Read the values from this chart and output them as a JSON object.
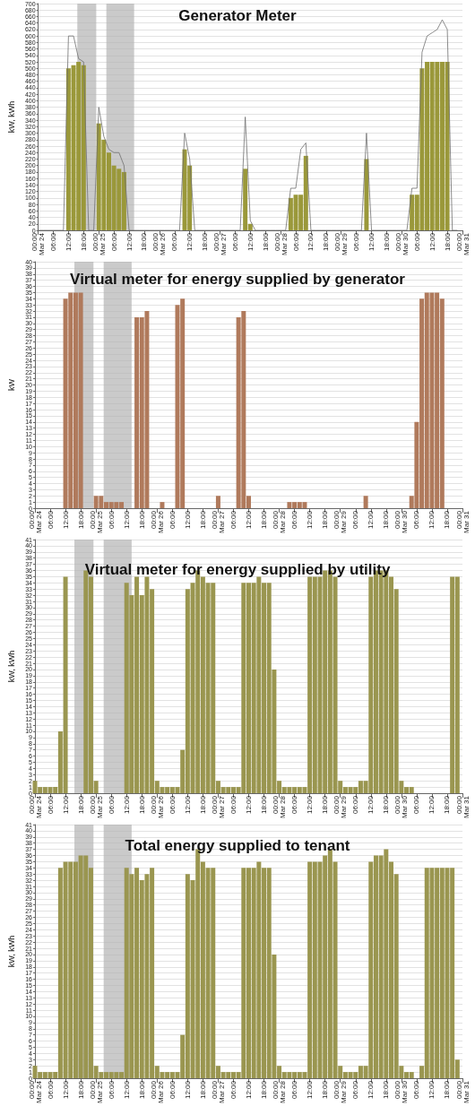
{
  "chart_data": [
    {
      "type": "bar",
      "title": "Generator Meter",
      "ylabel": "kW, kWh",
      "grid": "y",
      "marker": "none",
      "x": [
        "--03-24T00:00",
        "--03-24T02:00",
        "--03-24T04:00",
        "--03-24T06:00",
        "--03-24T08:00",
        "--03-24T10:00",
        "--03-24T12:00",
        "--03-24T14:00",
        "--03-24T16:00",
        "--03-24T18:00",
        "--03-24T20:00",
        "--03-24T22:00",
        "--03-25T00:00",
        "--03-25T02:00",
        "--03-25T04:00",
        "--03-25T06:00",
        "--03-25T08:00",
        "--03-25T10:00",
        "--03-25T12:00",
        "--03-25T14:00",
        "--03-25T16:00",
        "--03-25T18:00",
        "--03-25T20:00",
        "--03-25T22:00",
        "--03-26T00:00",
        "--03-26T02:00",
        "--03-26T04:00",
        "--03-26T06:00",
        "--03-26T08:00",
        "--03-26T10:00",
        "--03-26T12:00",
        "--03-26T14:00",
        "--03-26T16:00",
        "--03-26T18:00",
        "--03-26T20:00",
        "--03-26T22:00",
        "--03-27T00:00",
        "--03-27T02:00",
        "--03-27T04:00",
        "--03-27T06:00",
        "--03-27T08:00",
        "--03-27T10:00",
        "--03-27T12:00",
        "--03-27T14:00",
        "--03-27T16:00",
        "--03-27T18:00",
        "--03-27T20:00",
        "--03-27T22:00",
        "--03-28T00:00",
        "--03-28T02:00",
        "--03-28T04:00",
        "--03-28T06:00",
        "--03-28T08:00",
        "--03-28T10:00",
        "--03-28T12:00",
        "--03-28T14:00",
        "--03-28T16:00",
        "--03-28T18:00",
        "--03-28T20:00",
        "--03-28T22:00",
        "--03-29T00:00",
        "--03-29T02:00",
        "--03-29T04:00",
        "--03-29T06:00",
        "--03-29T08:00",
        "--03-29T10:00",
        "--03-29T12:00",
        "--03-29T14:00",
        "--03-29T16:00",
        "--03-29T18:00",
        "--03-29T20:00",
        "--03-29T22:00",
        "--03-30T00:00",
        "--03-30T02:00",
        "--03-30T04:00",
        "--03-30T06:00",
        "--03-30T08:00",
        "--03-30T10:00",
        "--03-30T12:00",
        "--03-30T14:00",
        "--03-30T16:00",
        "--03-30T18:00",
        "--03-30T20:00",
        "--03-30T22:00"
      ],
      "series": [
        {
          "color": "#9a983a",
          "values": [
            0,
            0,
            0,
            0,
            0,
            0,
            500,
            510,
            520,
            510,
            0,
            0,
            330,
            280,
            240,
            200,
            190,
            180,
            0,
            0,
            0,
            0,
            0,
            0,
            0,
            0,
            0,
            0,
            0,
            250,
            200,
            0,
            0,
            0,
            0,
            0,
            0,
            0,
            0,
            0,
            0,
            190,
            20,
            0,
            0,
            0,
            0,
            0,
            0,
            0,
            100,
            110,
            110,
            230,
            0,
            0,
            0,
            0,
            0,
            0,
            0,
            0,
            0,
            0,
            0,
            220,
            0,
            0,
            0,
            0,
            0,
            0,
            0,
            0,
            110,
            110,
            500,
            520,
            520,
            520,
            520,
            520,
            0,
            0
          ]
        },
        {
          "type": "line",
          "color": "#707070",
          "values": [
            0,
            0,
            0,
            0,
            0,
            0,
            600,
            600,
            530,
            520,
            0,
            0,
            380,
            290,
            250,
            240,
            240,
            200,
            0,
            0,
            0,
            0,
            0,
            0,
            0,
            0,
            0,
            0,
            0,
            300,
            220,
            0,
            0,
            0,
            0,
            0,
            0,
            0,
            0,
            0,
            0,
            350,
            30,
            0,
            0,
            0,
            0,
            0,
            0,
            0,
            130,
            130,
            250,
            270,
            0,
            0,
            0,
            0,
            0,
            0,
            0,
            0,
            0,
            0,
            0,
            300,
            0,
            0,
            0,
            0,
            0,
            0,
            0,
            0,
            130,
            130,
            550,
            600,
            610,
            620,
            650,
            620,
            0,
            0
          ]
        }
      ],
      "xlim": [
        "--03-24T00:00",
        "--03-31T00:00"
      ],
      "xticks": [
        {
          "value": "--03-24T00:00",
          "label": "00:00\nMar 24"
        },
        {
          "value": "--03-24T06:00",
          "label": "06:00"
        },
        {
          "value": "--03-24T12:00",
          "label": "12:00"
        },
        {
          "value": "--03-24T18:00",
          "label": "18:00"
        },
        {
          "value": "--03-25T00:00",
          "label": "00:00\nMar 25"
        },
        {
          "value": "--03-25T06:00",
          "label": "06:00"
        },
        {
          "value": "--03-25T12:00",
          "label": "12:00"
        },
        {
          "value": "--03-25T18:00",
          "label": "18:00"
        },
        {
          "value": "--03-26T00:00",
          "label": "00:00\nMar 26"
        },
        {
          "value": "--03-26T06:00",
          "label": "06:00"
        },
        {
          "value": "--03-26T12:00",
          "label": "12:00"
        },
        {
          "value": "--03-26T18:00",
          "label": "18:00"
        },
        {
          "value": "--03-27T00:00",
          "label": "00:00\nMar 27"
        },
        {
          "value": "--03-27T06:00",
          "label": "06:00"
        },
        {
          "value": "--03-27T12:00",
          "label": "12:00"
        },
        {
          "value": "--03-27T18:00",
          "label": "18:00"
        },
        {
          "value": "--03-28T00:00",
          "label": "00:00\nMar 28"
        },
        {
          "value": "--03-28T06:00",
          "label": "06:00"
        },
        {
          "value": "--03-28T12:00",
          "label": "12:00"
        },
        {
          "value": "--03-28T18:00",
          "label": "18:00"
        },
        {
          "value": "--03-29T00:00",
          "label": "00:00\nMar 29"
        },
        {
          "value": "--03-29T06:00",
          "label": "06:00"
        },
        {
          "value": "--03-29T12:00",
          "label": "12:00"
        },
        {
          "value": "--03-29T18:00",
          "label": "18:00"
        },
        {
          "value": "--03-30T00:00",
          "label": "00:00\nMar 30"
        },
        {
          "value": "--03-30T06:00",
          "label": "06:00"
        },
        {
          "value": "--03-30T12:00",
          "label": "12:00"
        },
        {
          "value": "--03-30T18:00",
          "label": "18:00"
        },
        {
          "value": "--03-31T00:00",
          "label": "00:00\nMar 31"
        }
      ],
      "ylim": [
        0,
        700
      ],
      "yticks": [
        0,
        20,
        40,
        60,
        80,
        100,
        120,
        140,
        160,
        180,
        200,
        220,
        240,
        260,
        280,
        300,
        320,
        340,
        360,
        380,
        400,
        420,
        440,
        460,
        480,
        500,
        520,
        540,
        560,
        580,
        600,
        620,
        640,
        660,
        680,
        700
      ],
      "bands": [
        {
          "axis": "x",
          "from": "--03-24T15:30",
          "to": "--03-24T23:00",
          "color": "#b4b4b4"
        },
        {
          "axis": "x",
          "from": "--03-25T03:00",
          "to": "--03-25T14:00",
          "color": "#b4b4b4"
        }
      ]
    },
    {
      "type": "bar",
      "title": "Virtual meter for energy supplied by generator",
      "ylabel": "kW",
      "grid": "y",
      "x": [
        "--03-24T00:00",
        "--03-24T02:00",
        "--03-24T04:00",
        "--03-24T06:00",
        "--03-24T08:00",
        "--03-24T10:00",
        "--03-24T12:00",
        "--03-24T14:00",
        "--03-24T16:00",
        "--03-24T18:00",
        "--03-24T20:00",
        "--03-24T22:00",
        "--03-25T00:00",
        "--03-25T02:00",
        "--03-25T04:00",
        "--03-25T06:00",
        "--03-25T08:00",
        "--03-25T10:00",
        "--03-25T12:00",
        "--03-25T14:00",
        "--03-25T16:00",
        "--03-25T18:00",
        "--03-25T20:00",
        "--03-25T22:00",
        "--03-26T00:00",
        "--03-26T02:00",
        "--03-26T04:00",
        "--03-26T06:00",
        "--03-26T08:00",
        "--03-26T10:00",
        "--03-26T12:00",
        "--03-26T14:00",
        "--03-26T16:00",
        "--03-26T18:00",
        "--03-26T20:00",
        "--03-26T22:00",
        "--03-27T00:00",
        "--03-27T02:00",
        "--03-27T04:00",
        "--03-27T06:00",
        "--03-27T08:00",
        "--03-27T10:00",
        "--03-27T12:00",
        "--03-27T14:00",
        "--03-27T16:00",
        "--03-27T18:00",
        "--03-27T20:00",
        "--03-27T22:00",
        "--03-28T00:00",
        "--03-28T02:00",
        "--03-28T04:00",
        "--03-28T06:00",
        "--03-28T08:00",
        "--03-28T10:00",
        "--03-28T12:00",
        "--03-28T14:00",
        "--03-28T16:00",
        "--03-28T18:00",
        "--03-28T20:00",
        "--03-28T22:00",
        "--03-29T00:00",
        "--03-29T02:00",
        "--03-29T04:00",
        "--03-29T06:00",
        "--03-29T08:00",
        "--03-29T10:00",
        "--03-29T12:00",
        "--03-29T14:00",
        "--03-29T16:00",
        "--03-29T18:00",
        "--03-29T20:00",
        "--03-29T22:00",
        "--03-30T00:00",
        "--03-30T02:00",
        "--03-30T04:00",
        "--03-30T06:00",
        "--03-30T08:00",
        "--03-30T10:00",
        "--03-30T12:00",
        "--03-30T14:00",
        "--03-30T16:00",
        "--03-30T18:00",
        "--03-30T20:00",
        "--03-30T22:00"
      ],
      "series": [
        {
          "color": "#b07a5c",
          "values": [
            0,
            0,
            0,
            0,
            0,
            0,
            34,
            35,
            35,
            35,
            0,
            0,
            2,
            2,
            1,
            1,
            1,
            1,
            0,
            0,
            31,
            31,
            32,
            0,
            0,
            1,
            0,
            0,
            33,
            34,
            0,
            0,
            0,
            0,
            0,
            0,
            2,
            0,
            0,
            0,
            31,
            32,
            2,
            0,
            0,
            0,
            0,
            0,
            0,
            0,
            1,
            1,
            1,
            1,
            0,
            0,
            0,
            0,
            0,
            0,
            0,
            0,
            0,
            0,
            0,
            2,
            0,
            0,
            0,
            0,
            0,
            0,
            0,
            0,
            2,
            14,
            34,
            35,
            35,
            35,
            34,
            0,
            0,
            0
          ]
        }
      ],
      "xlim": [
        "--03-24T00:00",
        "--03-31T00:00"
      ],
      "xticks": [
        {
          "value": "--03-24T00:00",
          "label": "00:00\nMar 24"
        },
        {
          "value": "--03-24T06:00",
          "label": "06:00"
        },
        {
          "value": "--03-24T12:00",
          "label": "12:00"
        },
        {
          "value": "--03-24T18:00",
          "label": "18:00"
        },
        {
          "value": "--03-25T00:00",
          "label": "00:00\nMar 25"
        },
        {
          "value": "--03-25T06:00",
          "label": "06:00"
        },
        {
          "value": "--03-25T12:00",
          "label": "12:00"
        },
        {
          "value": "--03-25T18:00",
          "label": "18:00"
        },
        {
          "value": "--03-26T00:00",
          "label": "00:00\nMar 26"
        },
        {
          "value": "--03-26T06:00",
          "label": "06:00"
        },
        {
          "value": "--03-26T12:00",
          "label": "12:00"
        },
        {
          "value": "--03-26T18:00",
          "label": "18:00"
        },
        {
          "value": "--03-27T00:00",
          "label": "00:00\nMar 27"
        },
        {
          "value": "--03-27T06:00",
          "label": "06:00"
        },
        {
          "value": "--03-27T12:00",
          "label": "12:00"
        },
        {
          "value": "--03-27T18:00",
          "label": "18:00"
        },
        {
          "value": "--03-28T00:00",
          "label": "00:00\nMar 28"
        },
        {
          "value": "--03-28T06:00",
          "label": "06:00"
        },
        {
          "value": "--03-28T12:00",
          "label": "12:00"
        },
        {
          "value": "--03-28T18:00",
          "label": "18:00"
        },
        {
          "value": "--03-29T00:00",
          "label": "00:00\nMar 29"
        },
        {
          "value": "--03-29T06:00",
          "label": "06:00"
        },
        {
          "value": "--03-29T12:00",
          "label": "12:00"
        },
        {
          "value": "--03-29T18:00",
          "label": "18:00"
        },
        {
          "value": "--03-30T00:00",
          "label": "00:00\nMar 30"
        },
        {
          "value": "--03-30T06:00",
          "label": "06:00"
        },
        {
          "value": "--03-30T12:00",
          "label": "12:00"
        },
        {
          "value": "--03-30T18:00",
          "label": "18:00"
        },
        {
          "value": "--03-31T00:00",
          "label": "00:00\nMar 31"
        }
      ],
      "ylim": [
        0,
        40
      ],
      "yticks": [
        0,
        1,
        2,
        3,
        4,
        5,
        6,
        7,
        8,
        9,
        10,
        11,
        12,
        13,
        14,
        15,
        16,
        17,
        18,
        19,
        20,
        21,
        22,
        23,
        24,
        25,
        26,
        27,
        28,
        29,
        30,
        31,
        32,
        33,
        34,
        35,
        36,
        37,
        38,
        39,
        40
      ],
      "bands": [
        {
          "axis": "x",
          "from": "--03-24T15:30",
          "to": "--03-24T23:00",
          "color": "#b4b4b4"
        },
        {
          "axis": "x",
          "from": "--03-25T03:00",
          "to": "--03-25T14:00",
          "color": "#b4b4b4"
        }
      ]
    },
    {
      "type": "bar",
      "title": "Virtual meter for energy supplied by utility",
      "ylabel": "kW, kWh",
      "grid": "y",
      "x": [
        "--03-24T00:00",
        "--03-24T02:00",
        "--03-24T04:00",
        "--03-24T06:00",
        "--03-24T08:00",
        "--03-24T10:00",
        "--03-24T12:00",
        "--03-24T14:00",
        "--03-24T16:00",
        "--03-24T18:00",
        "--03-24T20:00",
        "--03-24T22:00",
        "--03-25T00:00",
        "--03-25T02:00",
        "--03-25T04:00",
        "--03-25T06:00",
        "--03-25T08:00",
        "--03-25T10:00",
        "--03-25T12:00",
        "--03-25T14:00",
        "--03-25T16:00",
        "--03-25T18:00",
        "--03-25T20:00",
        "--03-25T22:00",
        "--03-26T00:00",
        "--03-26T02:00",
        "--03-26T04:00",
        "--03-26T06:00",
        "--03-26T08:00",
        "--03-26T10:00",
        "--03-26T12:00",
        "--03-26T14:00",
        "--03-26T16:00",
        "--03-26T18:00",
        "--03-26T20:00",
        "--03-26T22:00",
        "--03-27T00:00",
        "--03-27T02:00",
        "--03-27T04:00",
        "--03-27T06:00",
        "--03-27T08:00",
        "--03-27T10:00",
        "--03-27T12:00",
        "--03-27T14:00",
        "--03-27T16:00",
        "--03-27T18:00",
        "--03-27T20:00",
        "--03-27T22:00",
        "--03-28T00:00",
        "--03-28T02:00",
        "--03-28T04:00",
        "--03-28T06:00",
        "--03-28T08:00",
        "--03-28T10:00",
        "--03-28T12:00",
        "--03-28T14:00",
        "--03-28T16:00",
        "--03-28T18:00",
        "--03-28T20:00",
        "--03-28T22:00",
        "--03-29T00:00",
        "--03-29T02:00",
        "--03-29T04:00",
        "--03-29T06:00",
        "--03-29T08:00",
        "--03-29T10:00",
        "--03-29T12:00",
        "--03-29T14:00",
        "--03-29T16:00",
        "--03-29T18:00",
        "--03-29T20:00",
        "--03-29T22:00",
        "--03-30T00:00",
        "--03-30T02:00",
        "--03-30T04:00",
        "--03-30T06:00",
        "--03-30T08:00",
        "--03-30T10:00",
        "--03-30T12:00",
        "--03-30T14:00",
        "--03-30T16:00",
        "--03-30T18:00",
        "--03-30T20:00",
        "--03-30T22:00"
      ],
      "series": [
        {
          "color": "#9a9650",
          "values": [
            2,
            1,
            1,
            1,
            1,
            10,
            35,
            0,
            0,
            0,
            36,
            35,
            2,
            0,
            0,
            0,
            0,
            0,
            34,
            32,
            35,
            32,
            35,
            33,
            2,
            1,
            1,
            1,
            1,
            7,
            33,
            34,
            36,
            35,
            34,
            34,
            2,
            1,
            1,
            1,
            1,
            34,
            34,
            34,
            35,
            34,
            34,
            20,
            2,
            1,
            1,
            1,
            1,
            1,
            35,
            35,
            35,
            36,
            36,
            35,
            2,
            1,
            1,
            1,
            2,
            2,
            35,
            36,
            36,
            36,
            35,
            33,
            2,
            1,
            1,
            0,
            0,
            0,
            0,
            0,
            0,
            0,
            35,
            35
          ]
        }
      ],
      "xlim": [
        "--03-24T00:00",
        "--03-31T00:00"
      ],
      "xticks": [
        {
          "value": "--03-24T00:00",
          "label": "00:00\nMar 24"
        },
        {
          "value": "--03-24T06:00",
          "label": "06:00"
        },
        {
          "value": "--03-24T12:00",
          "label": "12:00"
        },
        {
          "value": "--03-24T18:00",
          "label": "18:00"
        },
        {
          "value": "--03-25T00:00",
          "label": "00:00\nMar 25"
        },
        {
          "value": "--03-25T06:00",
          "label": "06:00"
        },
        {
          "value": "--03-25T12:00",
          "label": "12:00"
        },
        {
          "value": "--03-25T18:00",
          "label": "18:00"
        },
        {
          "value": "--03-26T00:00",
          "label": "00:00\nMar 26"
        },
        {
          "value": "--03-26T06:00",
          "label": "06:00"
        },
        {
          "value": "--03-26T12:00",
          "label": "12:00"
        },
        {
          "value": "--03-26T18:00",
          "label": "18:00"
        },
        {
          "value": "--03-27T00:00",
          "label": "00:00\nMar 27"
        },
        {
          "value": "--03-27T06:00",
          "label": "06:00"
        },
        {
          "value": "--03-27T12:00",
          "label": "12:00"
        },
        {
          "value": "--03-27T18:00",
          "label": "18:00"
        },
        {
          "value": "--03-28T00:00",
          "label": "00:00\nMar 28"
        },
        {
          "value": "--03-28T06:00",
          "label": "06:00"
        },
        {
          "value": "--03-28T12:00",
          "label": "12:00"
        },
        {
          "value": "--03-28T18:00",
          "label": "18:00"
        },
        {
          "value": "--03-29T00:00",
          "label": "00:00\nMar 29"
        },
        {
          "value": "--03-29T06:00",
          "label": "06:00"
        },
        {
          "value": "--03-29T12:00",
          "label": "12:00"
        },
        {
          "value": "--03-29T18:00",
          "label": "18:00"
        },
        {
          "value": "--03-30T00:00",
          "label": "00:00\nMar 30"
        },
        {
          "value": "--03-30T06:00",
          "label": "06:00"
        },
        {
          "value": "--03-30T12:00",
          "label": "12:00"
        },
        {
          "value": "--03-30T18:00",
          "label": "18:00"
        },
        {
          "value": "--03-31T00:00",
          "label": "00:00\nMar 31"
        }
      ],
      "ylim": [
        0,
        41
      ],
      "yticks": [
        0,
        1,
        2,
        3,
        4,
        5,
        6,
        7,
        8,
        9,
        10,
        11,
        12,
        13,
        14,
        15,
        16,
        17,
        18,
        19,
        20,
        21,
        22,
        23,
        24,
        25,
        26,
        27,
        28,
        29,
        30,
        31,
        32,
        33,
        34,
        35,
        36,
        37,
        38,
        39,
        40,
        41
      ],
      "bands": [
        {
          "axis": "x",
          "from": "--03-24T15:30",
          "to": "--03-24T23:00",
          "color": "#b4b4b4"
        },
        {
          "axis": "x",
          "from": "--03-25T03:00",
          "to": "--03-25T14:00",
          "color": "#b4b4b4"
        }
      ]
    },
    {
      "type": "bar",
      "title": "Total energy supplied to tenant",
      "ylabel": "kW, kWh",
      "grid": "y",
      "x": [
        "--03-24T00:00",
        "--03-24T02:00",
        "--03-24T04:00",
        "--03-24T06:00",
        "--03-24T08:00",
        "--03-24T10:00",
        "--03-24T12:00",
        "--03-24T14:00",
        "--03-24T16:00",
        "--03-24T18:00",
        "--03-24T20:00",
        "--03-24T22:00",
        "--03-25T00:00",
        "--03-25T02:00",
        "--03-25T04:00",
        "--03-25T06:00",
        "--03-25T08:00",
        "--03-25T10:00",
        "--03-25T12:00",
        "--03-25T14:00",
        "--03-25T16:00",
        "--03-25T18:00",
        "--03-25T20:00",
        "--03-25T22:00",
        "--03-26T00:00",
        "--03-26T02:00",
        "--03-26T04:00",
        "--03-26T06:00",
        "--03-26T08:00",
        "--03-26T10:00",
        "--03-26T12:00",
        "--03-26T14:00",
        "--03-26T16:00",
        "--03-26T18:00",
        "--03-26T20:00",
        "--03-26T22:00",
        "--03-27T00:00",
        "--03-27T02:00",
        "--03-27T04:00",
        "--03-27T06:00",
        "--03-27T08:00",
        "--03-27T10:00",
        "--03-27T12:00",
        "--03-27T14:00",
        "--03-27T16:00",
        "--03-27T18:00",
        "--03-27T20:00",
        "--03-27T22:00",
        "--03-28T00:00",
        "--03-28T02:00",
        "--03-28T04:00",
        "--03-28T06:00",
        "--03-28T08:00",
        "--03-28T10:00",
        "--03-28T12:00",
        "--03-28T14:00",
        "--03-28T16:00",
        "--03-28T18:00",
        "--03-28T20:00",
        "--03-28T22:00",
        "--03-29T00:00",
        "--03-29T02:00",
        "--03-29T04:00",
        "--03-29T06:00",
        "--03-29T08:00",
        "--03-29T10:00",
        "--03-29T12:00",
        "--03-29T14:00",
        "--03-29T16:00",
        "--03-29T18:00",
        "--03-29T20:00",
        "--03-29T22:00",
        "--03-30T00:00",
        "--03-30T02:00",
        "--03-30T04:00",
        "--03-30T06:00",
        "--03-30T08:00",
        "--03-30T10:00",
        "--03-30T12:00",
        "--03-30T14:00",
        "--03-30T16:00",
        "--03-30T18:00",
        "--03-30T20:00",
        "--03-30T22:00"
      ],
      "series": [
        {
          "color": "#9a9650",
          "values": [
            2,
            1,
            1,
            1,
            1,
            34,
            35,
            35,
            35,
            36,
            36,
            34,
            2,
            1,
            1,
            1,
            1,
            1,
            34,
            33,
            34,
            32,
            33,
            34,
            2,
            1,
            1,
            1,
            1,
            7,
            33,
            32,
            37,
            35,
            34,
            34,
            2,
            1,
            1,
            1,
            1,
            34,
            34,
            34,
            35,
            34,
            34,
            20,
            2,
            1,
            1,
            1,
            1,
            1,
            35,
            35,
            35,
            36,
            37,
            35,
            2,
            1,
            1,
            1,
            2,
            2,
            35,
            36,
            36,
            37,
            35,
            33,
            2,
            1,
            1,
            0,
            2,
            34,
            34,
            34,
            34,
            34,
            34,
            3
          ]
        }
      ],
      "xlim": [
        "--03-24T00:00",
        "--03-31T00:00"
      ],
      "xticks": [
        {
          "value": "--03-24T00:00",
          "label": "00:00\nMar 24"
        },
        {
          "value": "--03-24T06:00",
          "label": "06:00"
        },
        {
          "value": "--03-24T12:00",
          "label": "12:00"
        },
        {
          "value": "--03-24T18:00",
          "label": "18:00"
        },
        {
          "value": "--03-25T00:00",
          "label": "00:00\nMar 25"
        },
        {
          "value": "--03-25T06:00",
          "label": "06:00"
        },
        {
          "value": "--03-25T12:00",
          "label": "12:00"
        },
        {
          "value": "--03-25T18:00",
          "label": "18:00"
        },
        {
          "value": "--03-26T00:00",
          "label": "00:00\nMar 26"
        },
        {
          "value": "--03-26T06:00",
          "label": "06:00"
        },
        {
          "value": "--03-26T12:00",
          "label": "12:00"
        },
        {
          "value": "--03-26T18:00",
          "label": "18:00"
        },
        {
          "value": "--03-27T00:00",
          "label": "00:00\nMar 27"
        },
        {
          "value": "--03-27T06:00",
          "label": "06:00"
        },
        {
          "value": "--03-27T12:00",
          "label": "12:00"
        },
        {
          "value": "--03-27T18:00",
          "label": "18:00"
        },
        {
          "value": "--03-28T00:00",
          "label": "00:00\nMar 28"
        },
        {
          "value": "--03-28T06:00",
          "label": "06:00"
        },
        {
          "value": "--03-28T12:00",
          "label": "12:00"
        },
        {
          "value": "--03-28T18:00",
          "label": "18:00"
        },
        {
          "value": "--03-29T00:00",
          "label": "00:00\nMar 29"
        },
        {
          "value": "--03-29T06:00",
          "label": "06:00"
        },
        {
          "value": "--03-29T12:00",
          "label": "12:00"
        },
        {
          "value": "--03-29T18:00",
          "label": "18:00"
        },
        {
          "value": "--03-30T00:00",
          "label": "00:00\nMar 30"
        },
        {
          "value": "--03-30T06:00",
          "label": "06:00"
        },
        {
          "value": "--03-30T12:00",
          "label": "12:00"
        },
        {
          "value": "--03-30T18:00",
          "label": "18:00"
        },
        {
          "value": "--03-31T00:00",
          "label": "00:00\nMar 31"
        }
      ],
      "ylim": [
        0,
        41
      ],
      "yticks": [
        0,
        1,
        2,
        3,
        4,
        5,
        6,
        7,
        8,
        9,
        10,
        11,
        12,
        13,
        14,
        15,
        16,
        17,
        18,
        19,
        20,
        21,
        22,
        23,
        24,
        25,
        26,
        27,
        28,
        29,
        30,
        31,
        32,
        33,
        34,
        35,
        36,
        37,
        38,
        39,
        40,
        41
      ],
      "bands": [
        {
          "axis": "x",
          "from": "--03-24T15:30",
          "to": "--03-24T23:00",
          "color": "#b4b4b4"
        },
        {
          "axis": "x",
          "from": "--03-25T03:00",
          "to": "--03-25T14:00",
          "color": "#b4b4b4"
        }
      ]
    }
  ]
}
